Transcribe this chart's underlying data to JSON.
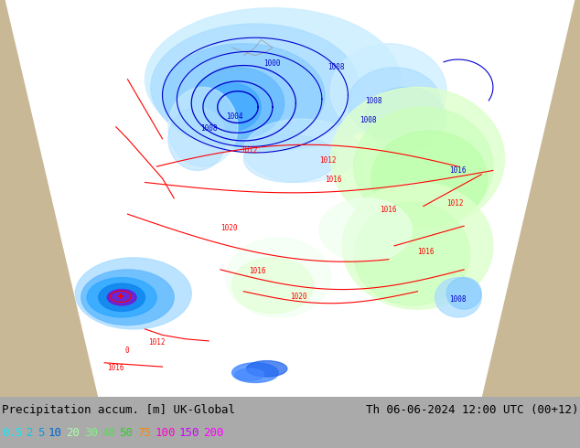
{
  "title_left": "Precipitation accum. [m] UK-Global",
  "title_right": "Th 06-06-2024 12:00 UTC (00+12)",
  "legend_values": [
    "0.5",
    "2",
    "5",
    "10",
    "20",
    "30",
    "40",
    "50",
    "75",
    "100",
    "150",
    "200"
  ],
  "legend_colors": [
    "#00eeff",
    "#00ccee",
    "#00aadd",
    "#0077cc",
    "#aaffaa",
    "#88ee88",
    "#66dd66",
    "#44cc44",
    "#ff8800",
    "#ff00cc",
    "#cc00ff",
    "#ff00ff"
  ],
  "bg_color": "#aaaaaa",
  "map_projection_color": "#ffffff",
  "land_color": "#c8b896",
  "ocean_color": "#b0bec5",
  "precip_blue_light": "#aaddff",
  "precip_blue_mid": "#66bbff",
  "precip_blue_dark": "#2299ff",
  "precip_blue_deep": "#0055dd",
  "precip_blue_vdeep": "#8800ff",
  "precip_green_light": "#ccffcc",
  "precip_green_mid": "#aaffaa",
  "isobar_red_color": "#ff0000",
  "isobar_blue_color": "#0000cc",
  "title_color": "#000000",
  "title_fontsize": 9.0,
  "legend_fontsize": 9.0,
  "fig_width": 6.34,
  "fig_height": 4.9
}
